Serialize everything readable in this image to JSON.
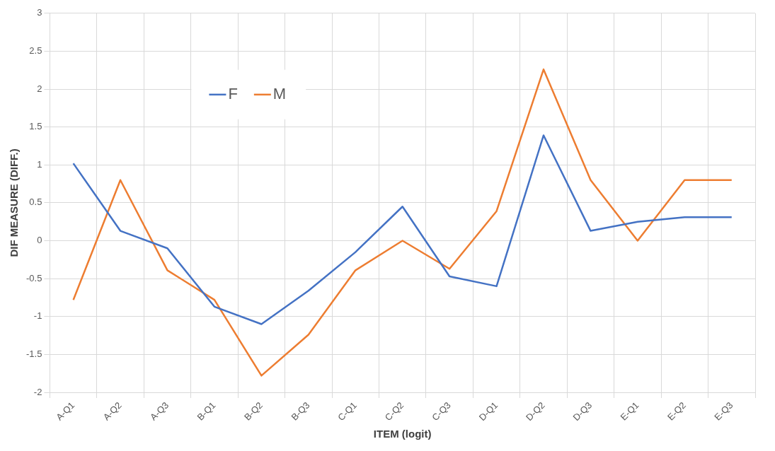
{
  "chart_data": {
    "type": "line",
    "xlabel": "ITEM (logit)",
    "ylabel": "DIF MEASURE (DIFF.)",
    "categories": [
      "A-Q1",
      "A-Q2",
      "A-Q3",
      "B-Q1",
      "B-Q2",
      "B-Q3",
      "C-Q1",
      "C-Q2",
      "C-Q3",
      "D-Q1",
      "D-Q2",
      "D-Q3",
      "E-Q1",
      "E-Q2",
      "E-Q3"
    ],
    "series": [
      {
        "name": "F",
        "color": "#4472c4",
        "values": [
          1.02,
          0.13,
          -0.1,
          -0.87,
          -1.1,
          -0.66,
          -0.15,
          0.45,
          -0.47,
          -0.6,
          1.39,
          0.13,
          0.25,
          0.31,
          0.31
        ]
      },
      {
        "name": "M",
        "color": "#ed7d31",
        "values": [
          -0.78,
          0.8,
          -0.39,
          -0.78,
          -1.78,
          -1.24,
          -0.39,
          0,
          -0.37,
          0.39,
          2.26,
          0.8,
          0,
          0.8,
          0.8
        ]
      }
    ],
    "ylim": [
      -2,
      3
    ],
    "yticks": [
      -2,
      -1.5,
      -1,
      -0.5,
      0,
      0.5,
      1,
      1.5,
      2,
      2.5,
      3
    ],
    "grid": true,
    "legend": "top left",
    "marker": "none",
    "line_style": "solid"
  }
}
